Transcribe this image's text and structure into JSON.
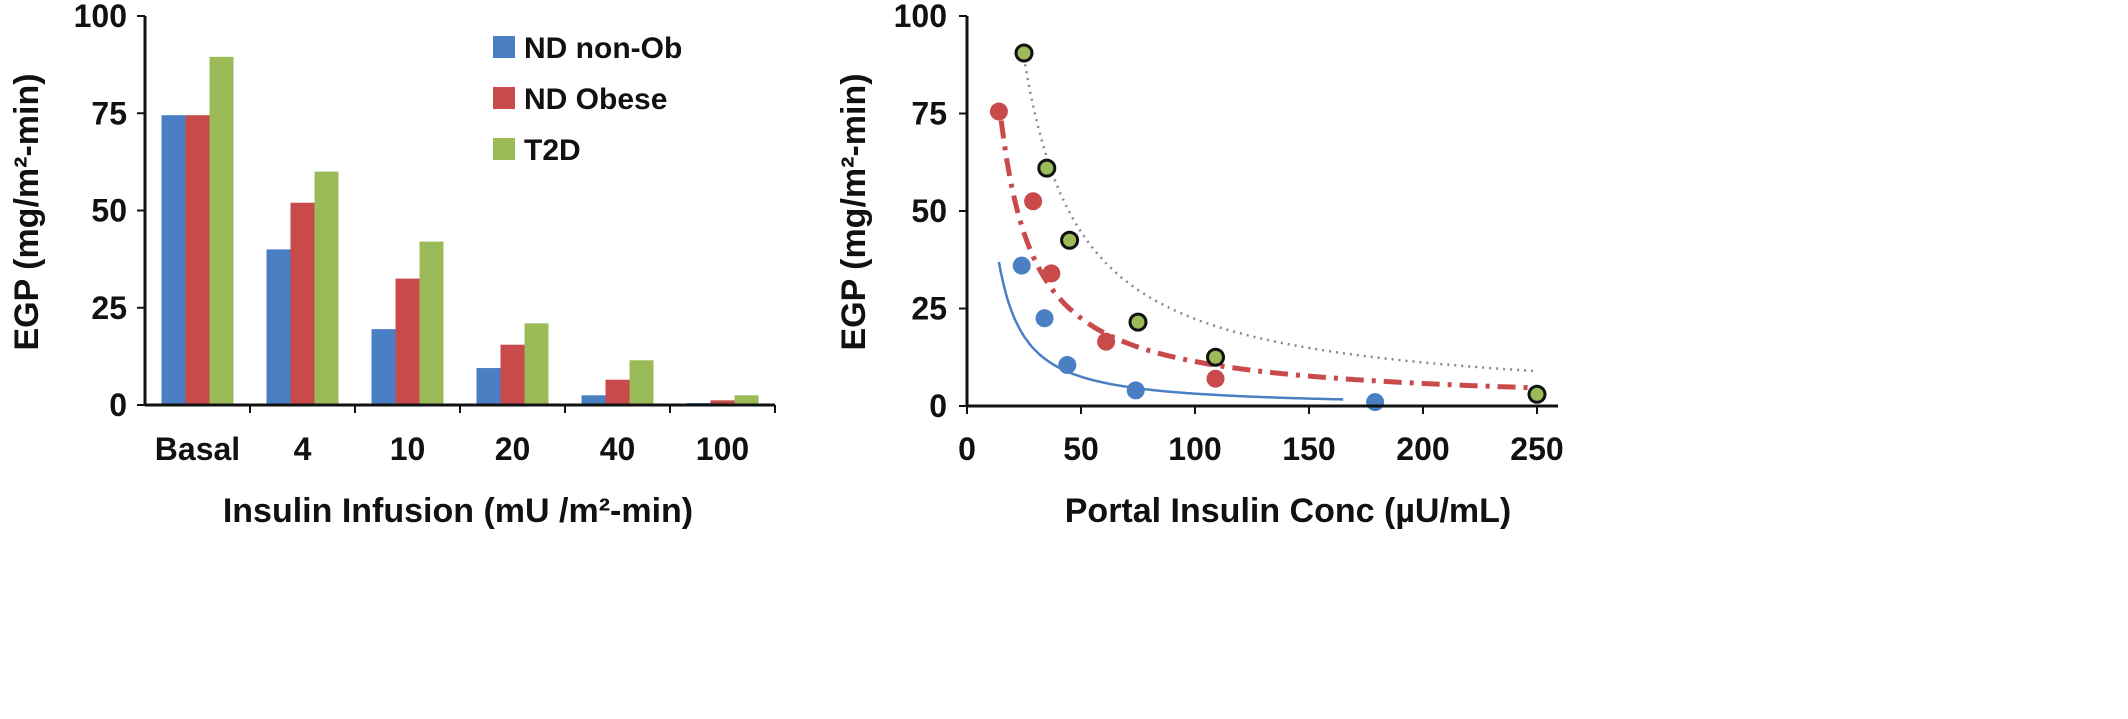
{
  "chart_data": [
    {
      "type": "bar",
      "categories": [
        "Basal",
        "4",
        "10",
        "20",
        "40",
        "100"
      ],
      "xlabel": "Insulin Infusion (mU /m²-min)",
      "ylabel": "EGP (mg/m²-min)",
      "ylim": [
        0,
        100
      ],
      "yticks": [
        "0",
        "25",
        "50",
        "75",
        "100"
      ],
      "legend_position": "top-right",
      "series": [
        {
          "name": "ND non-Ob",
          "color": "#4a7fc4",
          "values": [
            74.5,
            40,
            19.5,
            9.5,
            2.5,
            0.5
          ]
        },
        {
          "name": "ND Obese",
          "color": "#c84a4a",
          "values": [
            74.5,
            52,
            32.5,
            15.5,
            6.5,
            1.2
          ]
        },
        {
          "name": "T2D",
          "color": "#9bbb59",
          "values": [
            89.5,
            60,
            42,
            21,
            11.5,
            2.5
          ]
        }
      ]
    },
    {
      "type": "scatter",
      "xlabel": "Portal Insulin Conc (µU/mL)",
      "ylabel": "EGP (mg/m²-min)",
      "xlim": [
        0,
        250
      ],
      "ylim": [
        0,
        100
      ],
      "xticks": [
        "0",
        "50",
        "100",
        "150",
        "200",
        "250"
      ],
      "yticks": [
        "0",
        "25",
        "50",
        "75",
        "100"
      ],
      "series": [
        {
          "color": "#4a7fc4",
          "line_style": "solid",
          "points": [
            {
              "x": 24,
              "y": 36
            },
            {
              "x": 34,
              "y": 22.5
            },
            {
              "x": 44,
              "y": 10.5
            },
            {
              "x": 74,
              "y": 4
            },
            {
              "x": 179,
              "y": 1
            }
          ],
          "curve": {
            "k": 1000,
            "p": 1.25,
            "xmin": 14,
            "xmax": 165
          }
        },
        {
          "color": "#c84a4a",
          "line_style": "dashdot",
          "points": [
            {
              "x": 14,
              "y": 75.5
            },
            {
              "x": 29,
              "y": 52.5
            },
            {
              "x": 37,
              "y": 34
            },
            {
              "x": 61,
              "y": 16.5
            },
            {
              "x": 109,
              "y": 7
            }
          ],
          "curve": {
            "k": 1040,
            "p": 0.98,
            "xmin": 15,
            "xmax": 248
          }
        },
        {
          "color": "#9bbb59",
          "line_style": "dotted",
          "points": [
            {
              "x": 25,
              "y": 90.5
            },
            {
              "x": 35,
              "y": 61
            },
            {
              "x": 45,
              "y": 42.5
            },
            {
              "x": 75,
              "y": 21.5
            },
            {
              "x": 109,
              "y": 12.5
            },
            {
              "x": 250,
              "y": 3
            }
          ],
          "curve": {
            "k": 2233,
            "p": 1.0,
            "xmin": 24.5,
            "xmax": 250
          }
        }
      ]
    }
  ]
}
